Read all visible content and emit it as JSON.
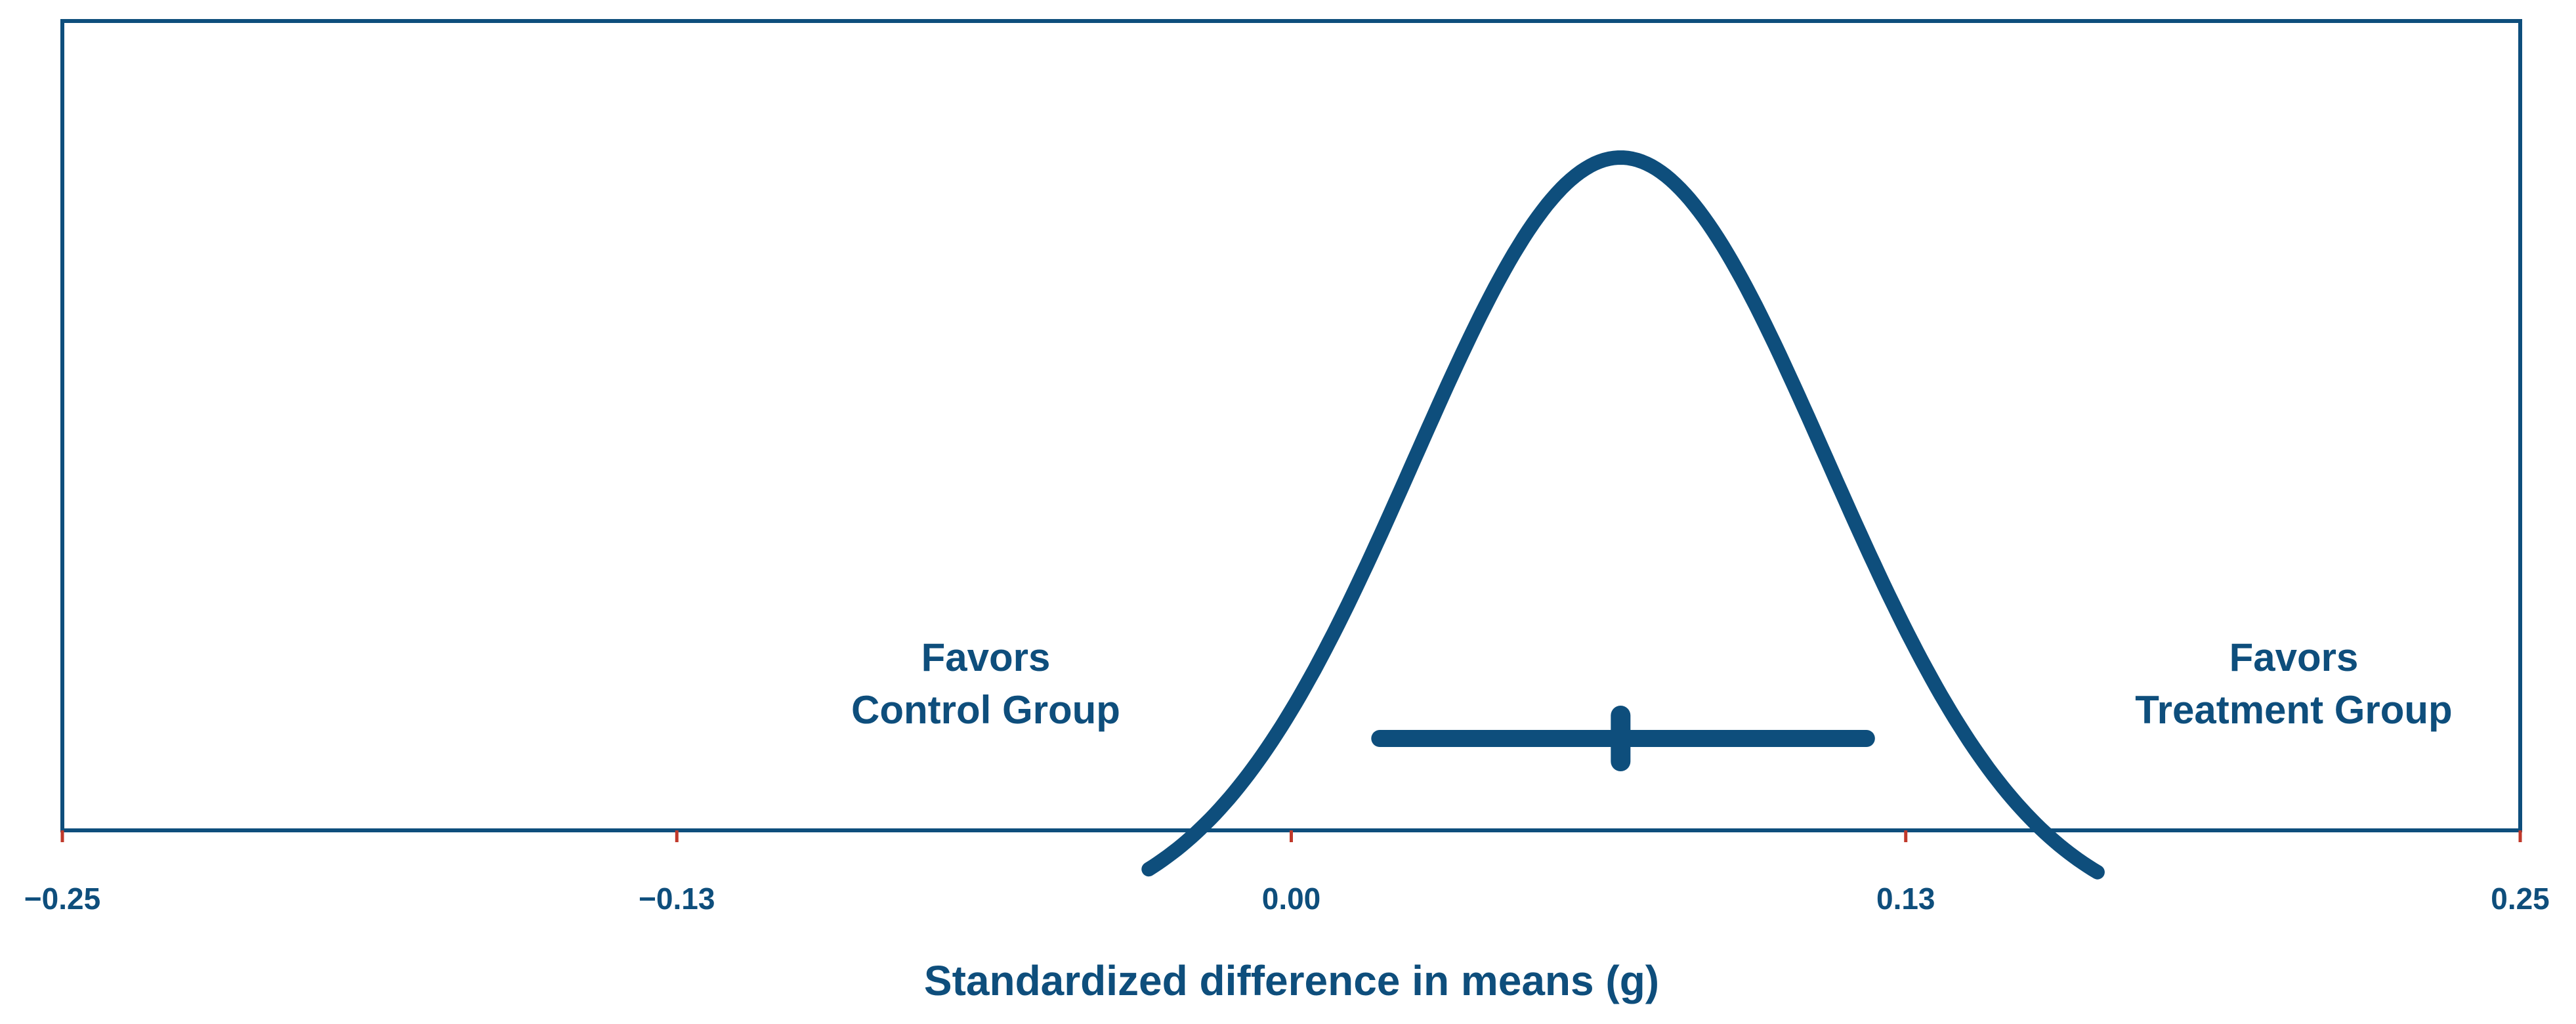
{
  "colors": {
    "primary": "#0e4e7c",
    "tick": "#c0392b",
    "background": "#ffffff"
  },
  "chart_data": {
    "type": "line",
    "title": "",
    "xlabel": "Standardized difference in means (g)",
    "ylabel": "",
    "xlim": [
      -0.25,
      0.25
    ],
    "xticks": [
      -0.25,
      -0.125,
      0,
      0.125,
      0.25
    ],
    "xtick_labels": [
      "−0.25",
      "−0.13",
      "0.00",
      "0.13",
      "0.25"
    ],
    "grid": false,
    "annotations": {
      "left": [
        "Favors",
        "Control Group"
      ],
      "right": [
        "Favors",
        "Treatment Group"
      ]
    },
    "distribution": {
      "mean": 0.067,
      "sd": 0.042,
      "x_start": -0.029,
      "x_end": 0.164
    },
    "interval": {
      "estimate": 0.067,
      "lower": 0.018,
      "upper": 0.117
    }
  }
}
